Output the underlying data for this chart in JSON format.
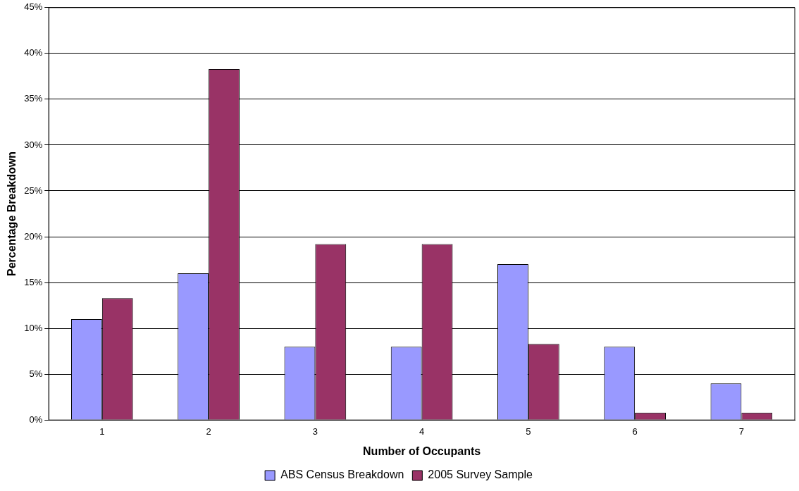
{
  "chart_data": {
    "type": "bar",
    "xlabel": "Number of Occupants",
    "ylabel": "Percentage Breakdown",
    "categories": [
      "1",
      "2",
      "3",
      "4",
      "5",
      "6",
      "7"
    ],
    "series": [
      {
        "name": "ABS Census Breakdown",
        "color": "#9999ff",
        "values": [
          11,
          16,
          8,
          8,
          17,
          8,
          4
        ]
      },
      {
        "name": "2005 Survey Sample",
        "color": "#993366",
        "values": [
          13.3,
          38.3,
          19.2,
          19.2,
          8.3,
          0.8,
          0.8
        ]
      }
    ],
    "ylim": [
      0,
      45
    ],
    "yticks": [
      {
        "value": 0,
        "label": "0%"
      },
      {
        "value": 5,
        "label": "5%"
      },
      {
        "value": 10,
        "label": "10%"
      },
      {
        "value": 15,
        "label": "15%"
      },
      {
        "value": 20,
        "label": "20%"
      },
      {
        "value": 25,
        "label": "25%"
      },
      {
        "value": 30,
        "label": "30%"
      },
      {
        "value": 35,
        "label": "35%"
      },
      {
        "value": 40,
        "label": "40%"
      },
      {
        "value": 45,
        "label": "45%"
      }
    ],
    "grid": "y",
    "legend": "bottom"
  }
}
